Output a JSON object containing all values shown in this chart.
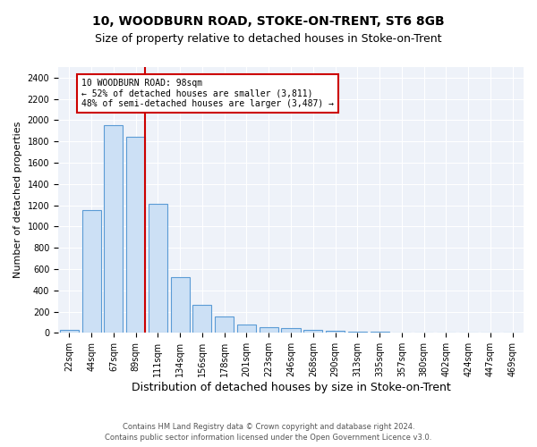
{
  "title1": "10, WOODBURN ROAD, STOKE-ON-TRENT, ST6 8GB",
  "title2": "Size of property relative to detached houses in Stoke-on-Trent",
  "xlabel": "Distribution of detached houses by size in Stoke-on-Trent",
  "ylabel": "Number of detached properties",
  "categories": [
    "22sqm",
    "44sqm",
    "67sqm",
    "89sqm",
    "111sqm",
    "134sqm",
    "156sqm",
    "178sqm",
    "201sqm",
    "223sqm",
    "246sqm",
    "268sqm",
    "290sqm",
    "313sqm",
    "335sqm",
    "357sqm",
    "380sqm",
    "402sqm",
    "424sqm",
    "447sqm",
    "469sqm"
  ],
  "values": [
    25,
    1155,
    1950,
    1840,
    1215,
    520,
    260,
    152,
    80,
    52,
    42,
    25,
    18,
    12,
    8,
    6,
    4,
    3,
    2,
    2,
    2
  ],
  "bar_color_fill": "#cce0f5",
  "bar_color_edge": "#5b9bd5",
  "vline_x": 3.42,
  "vline_color": "#cc0000",
  "annotation_text": "10 WOODBURN ROAD: 98sqm\n← 52% of detached houses are smaller (3,811)\n48% of semi-detached houses are larger (3,487) →",
  "annotation_box_color": "white",
  "annotation_box_edgecolor": "#cc0000",
  "ylim": [
    0,
    2500
  ],
  "yticks": [
    0,
    200,
    400,
    600,
    800,
    1000,
    1200,
    1400,
    1600,
    1800,
    2000,
    2200,
    2400
  ],
  "footnote1": "Contains HM Land Registry data © Crown copyright and database right 2024.",
  "footnote2": "Contains public sector information licensed under the Open Government Licence v3.0.",
  "bg_color": "#eef2f9",
  "grid_color": "white",
  "title1_fontsize": 10,
  "title2_fontsize": 9,
  "xlabel_fontsize": 9,
  "ylabel_fontsize": 8,
  "tick_fontsize": 7,
  "footnote_fontsize": 6,
  "annotation_fontsize": 7
}
